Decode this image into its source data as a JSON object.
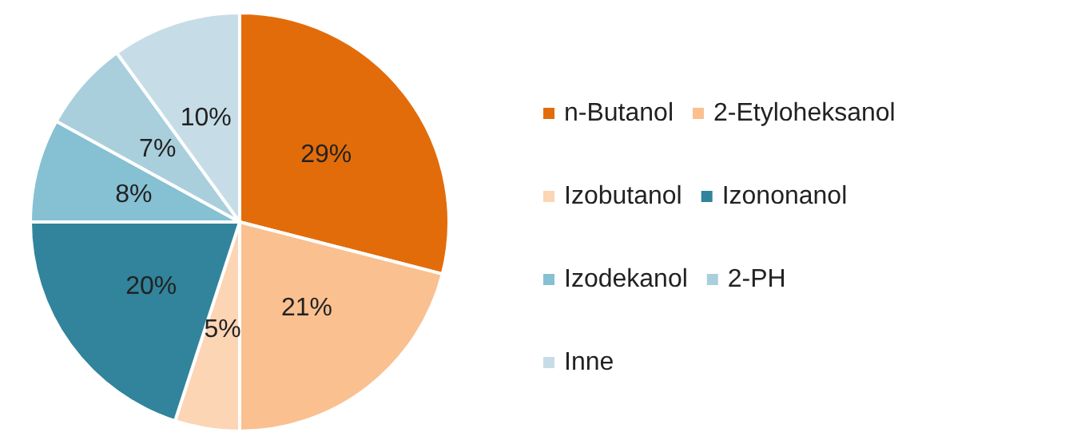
{
  "chart_data": {
    "type": "pie",
    "categories": [
      "n-Butanol",
      "2-Etyloheksanol",
      "Izobutanol",
      "Izononanol",
      "Izodekanol",
      "2-PH",
      "Inne"
    ],
    "values": [
      29,
      21,
      5,
      20,
      8,
      7,
      10
    ],
    "colors": [
      "#e36c0a",
      "#fac090",
      "#fcd5b5",
      "#31849b",
      "#86c0d3",
      "#a9cfdc",
      "#c6dde7"
    ],
    "value_labels": [
      "29%",
      "21%",
      "5%",
      "20%",
      "8%",
      "7%",
      "10%"
    ],
    "legend": "right"
  }
}
